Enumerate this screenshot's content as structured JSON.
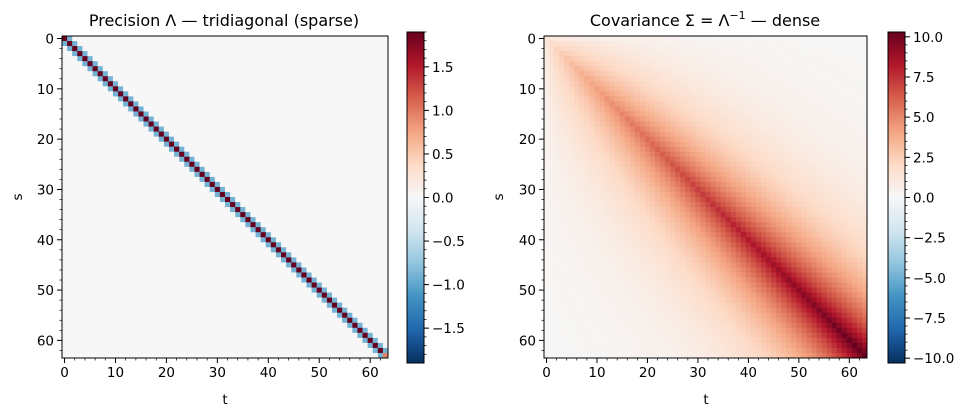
{
  "chart_data": [
    {
      "type": "heatmap",
      "title": "Precision Λ  —  tridiagonal (sparse)",
      "xlabel": "t",
      "ylabel": "s",
      "size": 64,
      "structure": "tridiagonal",
      "diagonal": 1.9,
      "diagonal_last": 0.95,
      "off_diagonal": -0.9,
      "background": 0.0,
      "xticks": [
        0,
        10,
        20,
        30,
        40,
        50,
        60
      ],
      "yticks": [
        0,
        10,
        20,
        30,
        40,
        50,
        60
      ],
      "colormap": "RdBu_r",
      "colorbar": {
        "min": -1.9,
        "max": 1.9,
        "ticks": [
          -1.5,
          -1.0,
          -0.5,
          0.0,
          0.5,
          1.0,
          1.5
        ],
        "tick_labels": [
          "−1.5",
          "−1.0",
          "−0.5",
          "0.0",
          "0.5",
          "1.0",
          "1.5"
        ]
      }
    },
    {
      "type": "heatmap",
      "title_prefix": "Covariance",
      "title_suffix": "—  dense",
      "xlabel": "t",
      "ylabel": "s",
      "size": 64,
      "structure": "dense",
      "diagonal_last": 10.3,
      "diagonal_first": 1.0,
      "corner_min": 0.16,
      "xticks": [
        0,
        10,
        20,
        30,
        40,
        50,
        60
      ],
      "yticks": [
        0,
        10,
        20,
        30,
        40,
        50,
        60
      ],
      "colormap": "RdBu_r",
      "colorbar": {
        "min": -10.3,
        "max": 10.3,
        "ticks": [
          -10,
          -7.5,
          -5,
          -2.5,
          0,
          2.5,
          5,
          7.5,
          10
        ],
        "tick_labels": [
          "−10.0",
          "−7.5",
          "−5.0",
          "−2.5",
          "0.0",
          "2.5",
          "5.0",
          "7.5",
          "10.0"
        ]
      }
    }
  ],
  "colors": {
    "cmap_stops": [
      "#053061",
      "#2166ac",
      "#4393c3",
      "#92c5de",
      "#d1e5f0",
      "#f7f7f7",
      "#fddbc7",
      "#f4a582",
      "#d6604d",
      "#b2182b",
      "#67001f"
    ]
  }
}
